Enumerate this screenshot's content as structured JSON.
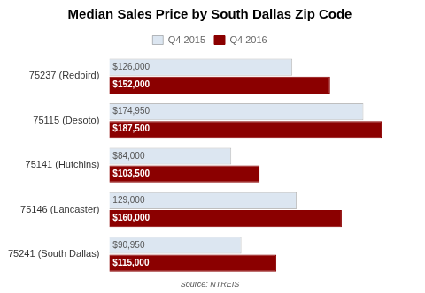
{
  "chart_data": {
    "type": "bar",
    "orientation": "horizontal",
    "title": "Median Sales Price by South Dallas Zip Code",
    "annotations": [
      "Source: NTREIS"
    ],
    "categories": [
      "75241 (South Dallas)",
      "75146 (Lancaster)",
      "75141 (Hutchins)",
      "75115 (Desoto)",
      "75237 (Redbird)"
    ],
    "series": [
      {
        "name": "Q4 2015",
        "color": "#dce6f1",
        "values": [
          90950,
          129000,
          84000,
          174950,
          126000
        ],
        "value_labels": [
          "$90,950",
          "129,000",
          "$84,000",
          "$174,950",
          "$126,000"
        ]
      },
      {
        "name": "Q4 2016",
        "color": "#8b0000",
        "values": [
          115000,
          160000,
          103500,
          187500,
          152000
        ],
        "value_labels": [
          "$115,000",
          "$160,000",
          "$103,500",
          "$187,500",
          "$152,000"
        ]
      }
    ],
    "xlim": [
      0,
      210000
    ],
    "data_labels": true,
    "tick_labels": "y",
    "grid": false,
    "legend": "top"
  }
}
